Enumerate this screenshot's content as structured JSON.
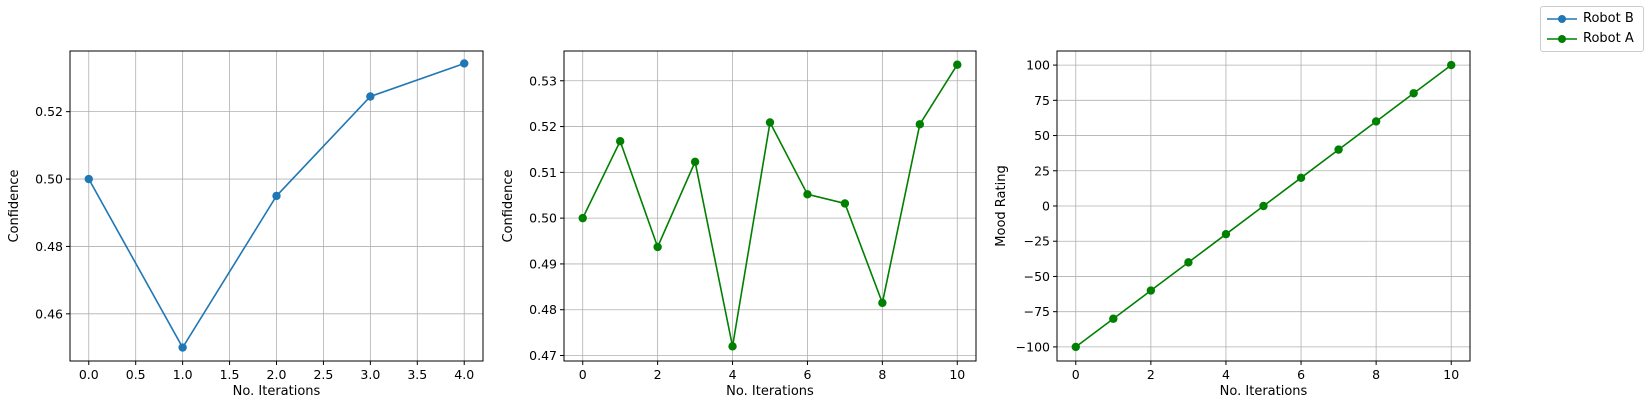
{
  "colors": {
    "robot_b": "#1f77b4",
    "robot_a": "#008000",
    "grid": "#b0b0b0",
    "axes": "#000000"
  },
  "legend": [
    {
      "name": "Robot B",
      "color": "#1f77b4"
    },
    {
      "name": "Robot A",
      "color": "#008000"
    }
  ],
  "chart_data": [
    {
      "type": "line",
      "xlabel": "No. Iterations",
      "ylabel": "Confidence",
      "xlim": [
        -0.2,
        4.2
      ],
      "ylim": [
        0.446,
        0.538
      ],
      "xticks": [
        0.0,
        0.5,
        1.0,
        1.5,
        2.0,
        2.5,
        3.0,
        3.5,
        4.0
      ],
      "xtick_labels": [
        "0.0",
        "0.5",
        "1.0",
        "1.5",
        "2.0",
        "2.5",
        "3.0",
        "3.5",
        "4.0"
      ],
      "yticks": [
        0.46,
        0.48,
        0.5,
        0.52
      ],
      "ytick_labels": [
        "0.46",
        "0.48",
        "0.50",
        "0.52"
      ],
      "grid": true,
      "series": [
        {
          "name": "Robot B",
          "color": "#1f77b4",
          "x": [
            0,
            1,
            2,
            3,
            4
          ],
          "y": [
            0.5,
            0.45,
            0.495,
            0.5245,
            0.5343
          ]
        }
      ]
    },
    {
      "type": "line",
      "xlabel": "No. Iterations",
      "ylabel": "Confidence",
      "xlim": [
        -0.5,
        10.5
      ],
      "ylim": [
        0.4688,
        0.5365
      ],
      "xticks": [
        0,
        2,
        4,
        6,
        8,
        10
      ],
      "xtick_labels": [
        "0",
        "2",
        "4",
        "6",
        "8",
        "10"
      ],
      "yticks": [
        0.47,
        0.48,
        0.49,
        0.5,
        0.51,
        0.52,
        0.53
      ],
      "ytick_labels": [
        "0.47",
        "0.48",
        "0.49",
        "0.50",
        "0.51",
        "0.52",
        "0.53"
      ],
      "grid": true,
      "series": [
        {
          "name": "Robot A",
          "color": "#008000",
          "x": [
            0,
            1,
            2,
            3,
            4,
            5,
            6,
            7,
            8,
            9,
            10
          ],
          "y": [
            0.5,
            0.5168,
            0.4937,
            0.5123,
            0.472,
            0.5209,
            0.5052,
            0.5032,
            0.4815,
            0.5205,
            0.5335
          ]
        }
      ]
    },
    {
      "type": "line",
      "xlabel": "No. Iterations",
      "ylabel": "Mood Rating",
      "xlim": [
        -0.5,
        10.5
      ],
      "ylim": [
        -110,
        110
      ],
      "xticks": [
        0,
        2,
        4,
        6,
        8,
        10
      ],
      "xtick_labels": [
        "0",
        "2",
        "4",
        "6",
        "8",
        "10"
      ],
      "yticks": [
        -100,
        -75,
        -50,
        -25,
        0,
        25,
        50,
        75,
        100
      ],
      "ytick_labels": [
        "−100",
        "−75",
        "−50",
        "−25",
        "0",
        "25",
        "50",
        "75",
        "100"
      ],
      "grid": true,
      "series": [
        {
          "name": "Robot A",
          "color": "#008000",
          "x": [
            0,
            1,
            2,
            3,
            4,
            5,
            6,
            7,
            8,
            9,
            10
          ],
          "y": [
            -100,
            -80,
            -60,
            -40,
            -20,
            0,
            20,
            40,
            60,
            80,
            100
          ]
        }
      ]
    }
  ]
}
